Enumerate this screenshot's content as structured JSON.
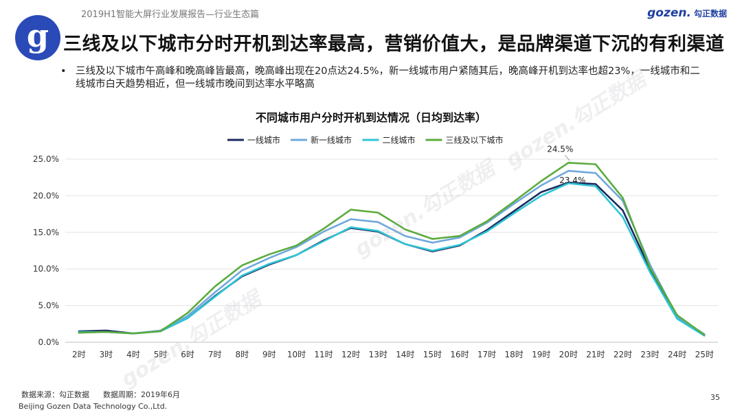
{
  "header": {
    "report_title": "2019H1智能大屏行业发展报告—行业生态篇",
    "logo_brand": "gozen.",
    "logo_cn": "勾正数据",
    "badge_letter": "g",
    "headline": "三线及以下城市分时开机到达率最高，营销价值大，是品牌渠道下沉的有利渠道"
  },
  "bullet": {
    "marker": "•",
    "text": "三线及以下城市午高峰和晚高峰皆最高，晚高峰出现在20点达24.5%，新一线城市用户紧随其后，晚高峰开机到达率也超23%，一线城市和二线城市白天趋势相近，但一线城市晚间到达率水平略高"
  },
  "footer": {
    "source": "数据来源：勾正数据",
    "period": "数据周期：2019年6月",
    "company": "Beijing Gozen Data Technology Co.,Ltd.",
    "page": "35"
  },
  "watermarks": [
    "gozen.勾正数据",
    "gozen.勾正数据",
    "gozen.勾正数据"
  ],
  "chart_data": {
    "type": "line",
    "title": "不同城市用户分时开机到达情况（日均到达率）",
    "xlabel": "",
    "ylabel": "",
    "categories": [
      "2时",
      "3时",
      "4时",
      "5时",
      "6时",
      "7时",
      "8时",
      "9时",
      "10时",
      "11时",
      "12时",
      "13时",
      "14时",
      "15时",
      "16时",
      "17时",
      "18时",
      "19时",
      "20时",
      "21时",
      "22时",
      "23时",
      "24时",
      "25时"
    ],
    "ylim": [
      0,
      25
    ],
    "yticks": [
      0,
      5,
      10,
      15,
      20,
      25
    ],
    "ytick_labels": [
      "0.0%",
      "5.0%",
      "10.0%",
      "15.0%",
      "20.0%",
      "25.0%"
    ],
    "legend_position": "top-center",
    "grid": "horizontal",
    "series": [
      {
        "name": "一线城市",
        "color": "#1b2a5c",
        "values": [
          1.5,
          1.6,
          1.2,
          1.5,
          3.3,
          6.3,
          9.0,
          10.6,
          11.9,
          13.9,
          15.6,
          15.1,
          13.4,
          12.4,
          13.2,
          15.3,
          17.9,
          20.5,
          21.8,
          21.6,
          18.0,
          10.0,
          3.4,
          1.0
        ]
      },
      {
        "name": "新一线城市",
        "color": "#6fa8dc",
        "values": [
          1.3,
          1.4,
          1.2,
          1.6,
          3.6,
          6.8,
          9.8,
          11.5,
          13.0,
          15.1,
          16.8,
          16.4,
          14.5,
          13.6,
          14.3,
          16.3,
          18.9,
          21.4,
          23.4,
          23.1,
          19.3,
          10.6,
          3.5,
          1.1
        ]
      },
      {
        "name": "二线城市",
        "color": "#2ec4d6",
        "values": [
          1.4,
          1.4,
          1.2,
          1.5,
          3.3,
          6.2,
          9.1,
          10.7,
          11.9,
          13.8,
          15.7,
          15.2,
          13.4,
          12.5,
          13.3,
          15.1,
          17.6,
          20.0,
          21.7,
          21.3,
          17.1,
          9.6,
          3.2,
          0.9
        ]
      },
      {
        "name": "三线及以下城市",
        "color": "#5aab3c",
        "values": [
          1.3,
          1.4,
          1.2,
          1.5,
          4.0,
          7.6,
          10.5,
          12.0,
          13.2,
          15.5,
          18.1,
          17.7,
          15.4,
          14.1,
          14.5,
          16.5,
          19.2,
          22.0,
          24.5,
          24.3,
          19.7,
          10.2,
          3.7,
          1.0
        ]
      }
    ],
    "annotations": [
      {
        "text": "24.5%",
        "series": "三线及以下城市",
        "category": "20时"
      },
      {
        "text": "23.4%",
        "series": "新一线城市",
        "category": "20时"
      }
    ]
  }
}
